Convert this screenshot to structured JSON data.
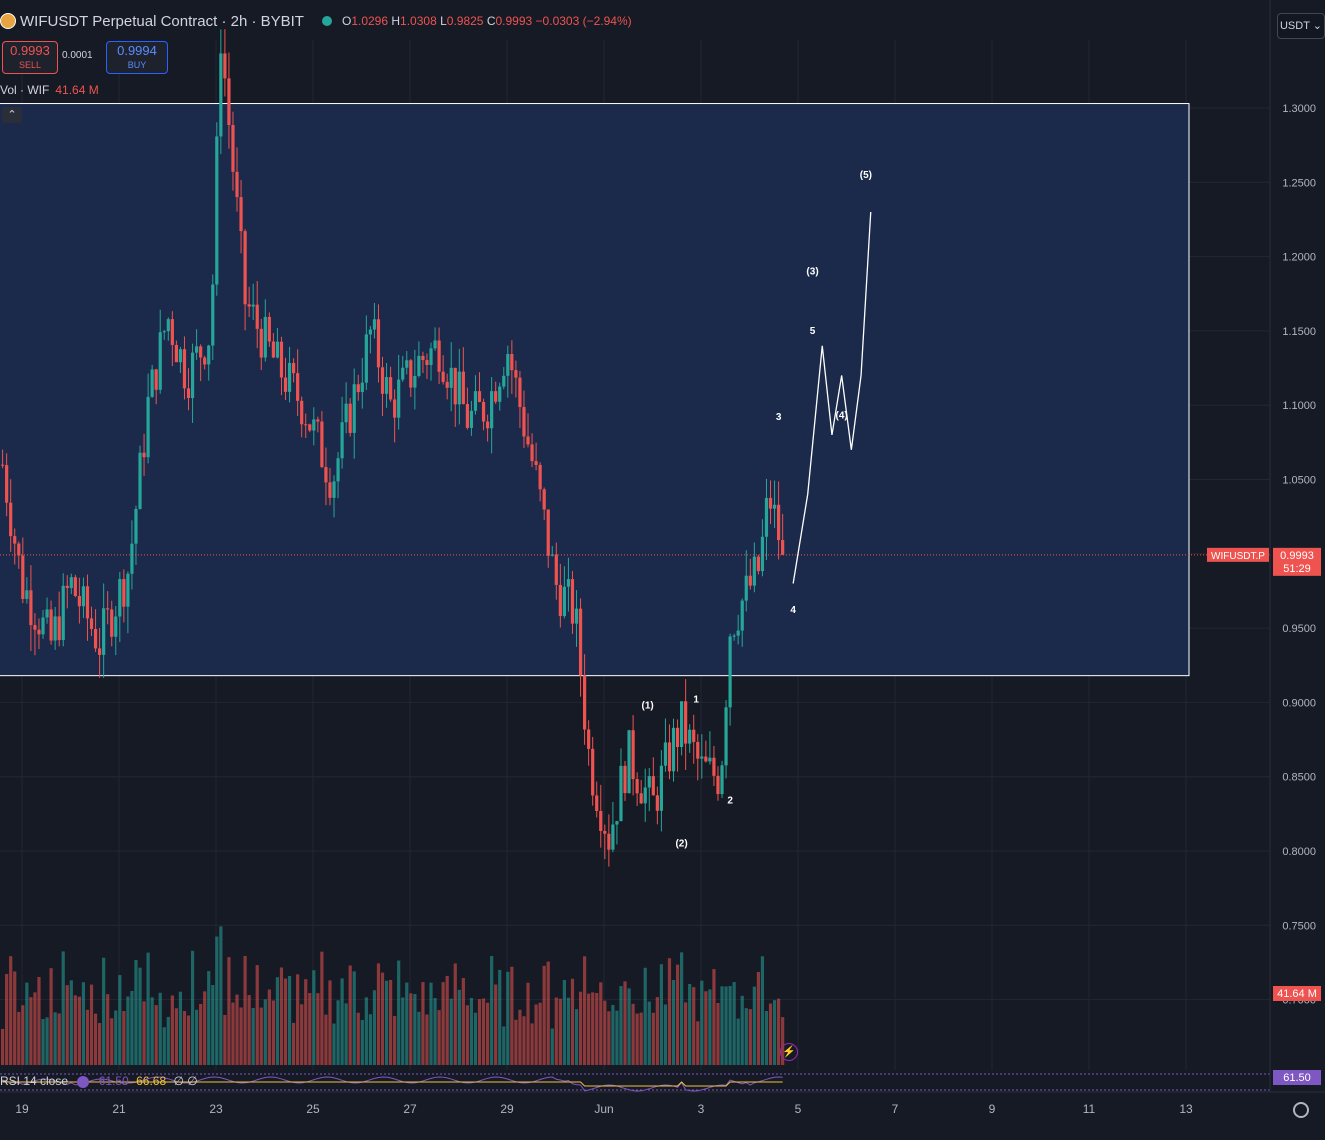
{
  "header": {
    "symbol_title": "WIFUSDT Perpetual Contract · 2h · BYBIT",
    "o_label": "O",
    "o_value": "1.0296",
    "h_label": "H",
    "h_value": "1.0308",
    "l_label": "L",
    "l_value": "0.9825",
    "c_label": "C",
    "c_value": "0.9993",
    "change": "−0.0303 (−2.94%)",
    "currency": "USDT"
  },
  "trade": {
    "sell_price": "0.9993",
    "sell_label": "SELL",
    "spread": "0.0001",
    "buy_price": "0.9994",
    "buy_label": "BUY"
  },
  "volume_legend": {
    "label": "Vol · WIF",
    "value": "41.64 M"
  },
  "rsi_legend": {
    "label": "RSI 14 close",
    "value1": "61.50",
    "value2": "66.68",
    "extra": "∅ ∅"
  },
  "colors": {
    "up": "#26a69a",
    "down": "#ef5350",
    "box": "#1b2a4a",
    "rsi": "#7e57c2",
    "rsi_ma": "#f0c040"
  },
  "chart_data": {
    "type": "candlestick",
    "title": "WIFUSDT Perpetual Contract · 2h · BYBIT",
    "y_ticks": [
      "1.3000",
      "1.2500",
      "1.2000",
      "1.1500",
      "1.1000",
      "1.0500",
      "1.0000",
      "0.9500",
      "0.9000",
      "0.8500",
      "0.8000",
      "0.7500",
      "0.7000"
    ],
    "ylim": [
      0.67,
      1.37
    ],
    "x_ticks": [
      "19",
      "21",
      "23",
      "25",
      "27",
      "29",
      "Jun",
      "3",
      "5",
      "7",
      "9",
      "11",
      "13"
    ],
    "last_price_label": "WIFUSDT.P",
    "last_price": "0.9993",
    "countdown": "51:29",
    "volume_label": "41.64 M",
    "rsi_label": "61.50",
    "zone": {
      "top": 1.303,
      "bottom": 0.918
    },
    "anchors": [
      {
        "day": 18.6,
        "price": 1.06
      },
      {
        "day": 19.0,
        "price": 0.98
      },
      {
        "day": 19.6,
        "price": 0.94
      },
      {
        "day": 20.0,
        "price": 0.98
      },
      {
        "day": 20.6,
        "price": 0.94
      },
      {
        "day": 21.2,
        "price": 0.99
      },
      {
        "day": 21.6,
        "price": 1.1
      },
      {
        "day": 22.0,
        "price": 1.16
      },
      {
        "day": 22.4,
        "price": 1.12
      },
      {
        "day": 22.9,
        "price": 1.15
      },
      {
        "day": 23.1,
        "price": 1.35
      },
      {
        "day": 23.6,
        "price": 1.17
      },
      {
        "day": 24.2,
        "price": 1.13
      },
      {
        "day": 24.8,
        "price": 1.1
      },
      {
        "day": 25.4,
        "price": 1.05
      },
      {
        "day": 25.8,
        "price": 1.1
      },
      {
        "day": 26.2,
        "price": 1.15
      },
      {
        "day": 26.6,
        "price": 1.1
      },
      {
        "day": 27.2,
        "price": 1.13
      },
      {
        "day": 27.6,
        "price": 1.14
      },
      {
        "day": 28.2,
        "price": 1.09
      },
      {
        "day": 28.6,
        "price": 1.1
      },
      {
        "day": 29.0,
        "price": 1.14
      },
      {
        "day": 29.6,
        "price": 1.05
      },
      {
        "day": 30.0,
        "price": 0.98
      },
      {
        "day": 30.4,
        "price": 0.96
      },
      {
        "day": 30.7,
        "price": 0.86
      },
      {
        "day": 31.1,
        "price": 0.81
      },
      {
        "day": 31.5,
        "price": 0.865
      },
      {
        "day": 32.0,
        "price": 0.83
      },
      {
        "day": 32.4,
        "price": 0.87
      },
      {
        "day": 32.6,
        "price": 0.885
      },
      {
        "day": 33.0,
        "price": 0.855
      },
      {
        "day": 33.4,
        "price": 0.85
      },
      {
        "day": 33.6,
        "price": 0.95
      },
      {
        "day": 33.8,
        "price": 0.965
      },
      {
        "day": 34.2,
        "price": 0.99
      },
      {
        "day": 34.4,
        "price": 1.04
      },
      {
        "day": 34.7,
        "price": 0.9993
      }
    ],
    "wave_labels": [
      {
        "text": "(1)",
        "day": 31.9,
        "price": 0.896
      },
      {
        "text": "1",
        "day": 32.9,
        "price": 0.9
      },
      {
        "text": "2",
        "day": 33.6,
        "price": 0.832
      },
      {
        "text": "(2)",
        "day": 32.6,
        "price": 0.803
      },
      {
        "text": "3",
        "day": 34.6,
        "price": 1.09
      },
      {
        "text": "4",
        "day": 34.9,
        "price": 0.96
      },
      {
        "text": "(3)",
        "day": 35.3,
        "price": 1.188
      },
      {
        "text": "5",
        "day": 35.3,
        "price": 1.148
      },
      {
        "text": "(4)",
        "day": 35.9,
        "price": 1.091
      },
      {
        "text": "(5)",
        "day": 36.4,
        "price": 1.253
      }
    ],
    "projection": [
      {
        "day": 34.9,
        "price": 0.98
      },
      {
        "day": 35.2,
        "price": 1.04
      },
      {
        "day": 35.5,
        "price": 1.14
      },
      {
        "day": 35.7,
        "price": 1.08
      },
      {
        "day": 35.9,
        "price": 1.12
      },
      {
        "day": 36.1,
        "price": 1.07
      },
      {
        "day": 36.3,
        "price": 1.12
      },
      {
        "day": 36.5,
        "price": 1.23
      }
    ]
  }
}
